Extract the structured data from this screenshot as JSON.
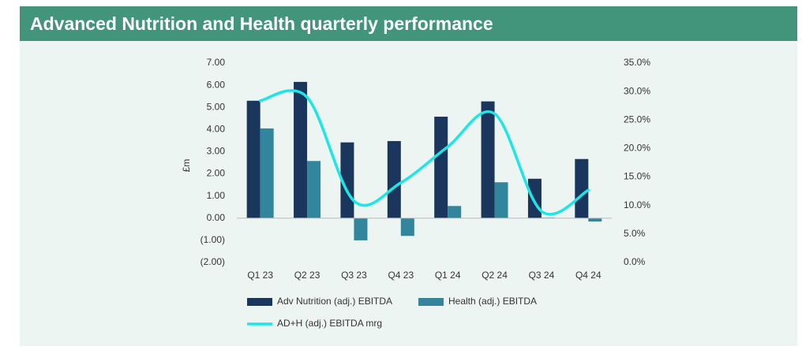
{
  "chart_data": {
    "type": "bar-line",
    "title": "Advanced Nutrition and Health quarterly performance",
    "ylabel": "£m",
    "categories": [
      "Q1 23",
      "Q2 23",
      "Q3 23",
      "Q4 23",
      "Q1 24",
      "Q2 24",
      "Q3 24",
      "Q4 24"
    ],
    "series": [
      {
        "name": "Adv Nutrition (adj.) EBITDA",
        "color": "#1b365d",
        "values": [
          5.3,
          6.15,
          3.42,
          3.48,
          4.58,
          5.27,
          1.78,
          2.67
        ]
      },
      {
        "name": "Health (adj.) EBITDA",
        "color": "#31859c",
        "values": [
          4.05,
          2.58,
          -1.0,
          -0.8,
          0.55,
          1.62,
          0.03,
          -0.15
        ]
      },
      {
        "name": "AD+H (adj.) EBITDA mrg",
        "color": "#1ee6e6",
        "axis": "y2",
        "type": "line",
        "values": [
          28.4,
          29.0,
          10.8,
          14.0,
          20.3,
          26.1,
          9.0,
          12.7
        ]
      }
    ],
    "ylim": [
      -2,
      7
    ],
    "yticks": [
      {
        "value": 7,
        "label": "7.00"
      },
      {
        "value": 6,
        "label": "6.00"
      },
      {
        "value": 5,
        "label": "5.00"
      },
      {
        "value": 4,
        "label": "4.00"
      },
      {
        "value": 3,
        "label": "3.00"
      },
      {
        "value": 2,
        "label": "2.00"
      },
      {
        "value": 1,
        "label": "1.00"
      },
      {
        "value": 0,
        "label": "0.00"
      },
      {
        "value": -1,
        "label": "(1.00)"
      },
      {
        "value": -2,
        "label": "(2.00)"
      }
    ],
    "y2lim": [
      0,
      35
    ],
    "y2ticks": [
      {
        "value": 35,
        "label": "35.0%"
      },
      {
        "value": 30,
        "label": "30.0%"
      },
      {
        "value": 25,
        "label": "25.0%"
      },
      {
        "value": 20,
        "label": "20.0%"
      },
      {
        "value": 15,
        "label": "15.0%"
      },
      {
        "value": 10,
        "label": "10.0%"
      },
      {
        "value": 5,
        "label": "5.0%"
      },
      {
        "value": 0,
        "label": "0.0%"
      }
    ],
    "legend": "bottom"
  }
}
